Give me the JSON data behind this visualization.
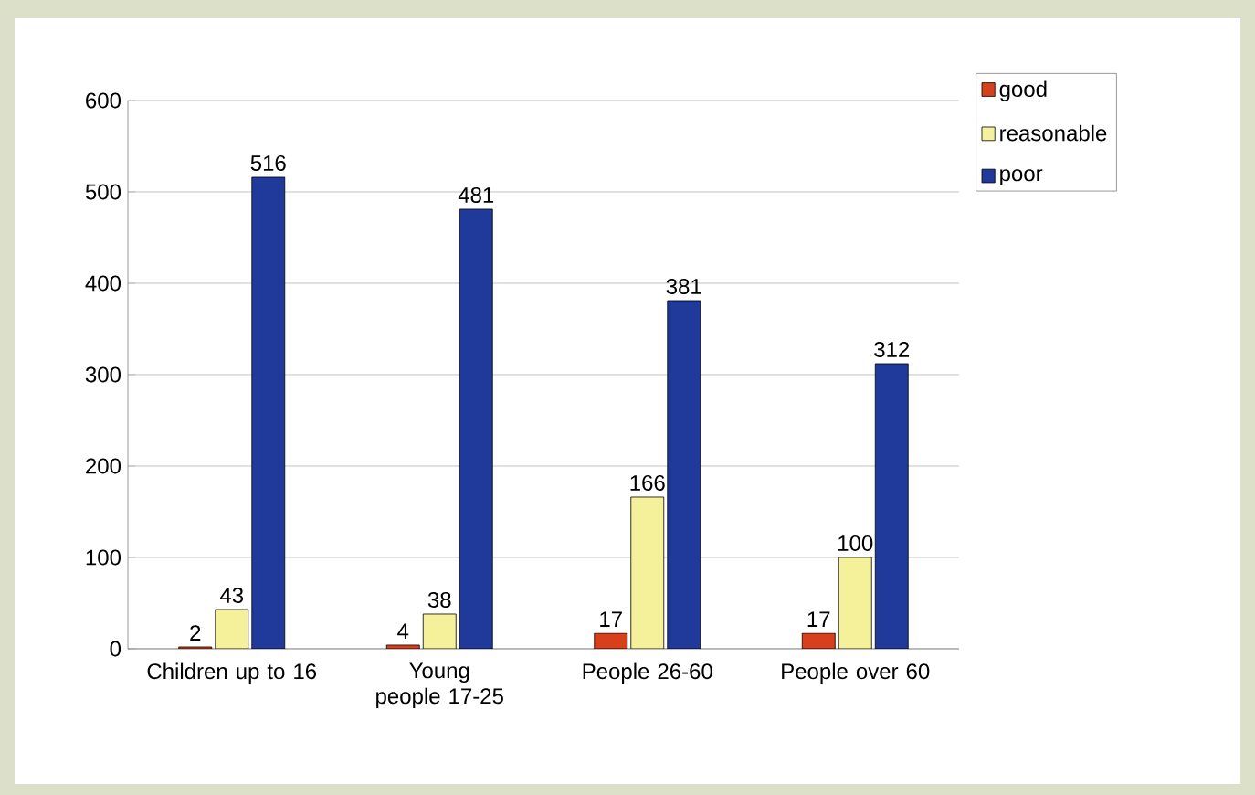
{
  "chart_data": {
    "type": "bar",
    "categories": [
      "Children up to 16",
      "Young people 17-25",
      "People 26-60",
      "People over 60"
    ],
    "series": [
      {
        "name": "good",
        "color": "#d8401c",
        "values": [
          2,
          4,
          17,
          17
        ]
      },
      {
        "name": "reasonable",
        "color": "#f5f09a",
        "values": [
          43,
          38,
          166,
          100
        ]
      },
      {
        "name": "poor",
        "color": "#1f3a9a",
        "values": [
          516,
          481,
          381,
          312
        ]
      }
    ],
    "ylim": [
      0,
      600
    ],
    "yticks": [
      0,
      100,
      200,
      300,
      400,
      500,
      600
    ],
    "grid": "y",
    "legend": "top right",
    "data_labels": true
  }
}
